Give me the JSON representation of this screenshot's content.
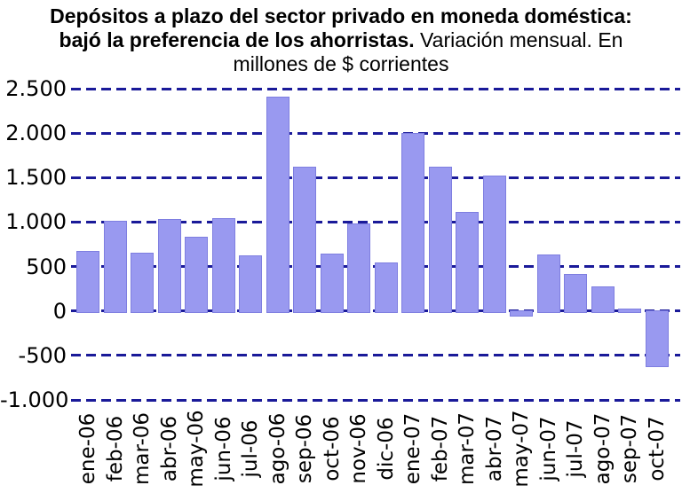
{
  "title": {
    "line1_bold": "Depósitos a plazo del sector privado en moneda doméstica:",
    "line2_bold": "bajó la preferencia de los ahorristas.",
    "line2_regular": " Variación mensual. En",
    "line3_regular": "millones de $ corrientes"
  },
  "colors": {
    "bar_fill": "#9999f0",
    "bar_border": "#7e7ee0",
    "gridline": "#1a1a99",
    "text": "#000000",
    "background": "#ffffff"
  },
  "chart_data": {
    "type": "bar",
    "title": "Depósitos a plazo del sector privado en moneda doméstica: bajó la preferencia de los ahorristas. Variación mensual. En millones de $ corrientes",
    "unit": "millones de $ corrientes",
    "categories": [
      "ene-06",
      "feb-06",
      "mar-06",
      "abr-06",
      "may-06",
      "jun-06",
      "jul-06",
      "ago-06",
      "sep-06",
      "oct-06",
      "nov-06",
      "dic-06",
      "ene-07",
      "feb-07",
      "mar-07",
      "abr-07",
      "may-07",
      "jun-07",
      "jul-07",
      "ago-07",
      "sep-07",
      "oct-07"
    ],
    "values": [
      680,
      1010,
      660,
      1030,
      830,
      1040,
      630,
      2410,
      1620,
      650,
      980,
      550,
      2000,
      1620,
      1110,
      1520,
      -40,
      640,
      420,
      280,
      30,
      -610
    ],
    "ylim": [
      -1000,
      2500
    ],
    "y_ticks": [
      2500,
      2000,
      1500,
      1000,
      500,
      0,
      -500,
      -1000
    ],
    "y_tick_labels": [
      "2.500",
      "2.000",
      "1.500",
      "1.000",
      "500",
      "0",
      "-500",
      "-1.000"
    ],
    "grid": "horizontal-dashed",
    "legend": "none",
    "xlabel": "",
    "ylabel": ""
  }
}
